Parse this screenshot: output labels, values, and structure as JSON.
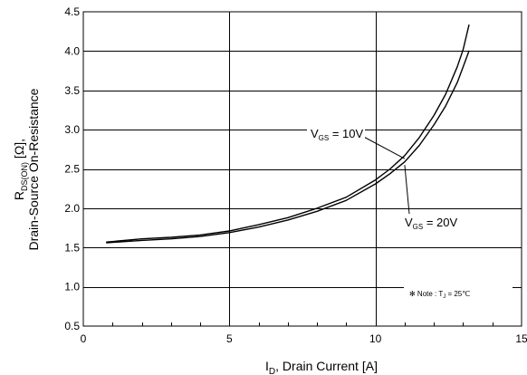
{
  "chart_data": {
    "type": "line",
    "title": "",
    "xlabel": {
      "main": "I",
      "sub": "D",
      "rest": ", Drain Current [A]"
    },
    "ylabel": {
      "line1_main": "R",
      "line1_sub": "DS(ON)",
      "line1_rest": " [Ω],",
      "line2": "Drain-Source On-Resistance"
    },
    "xlim": [
      0,
      15
    ],
    "ylim": [
      0.5,
      4.5
    ],
    "x_ticks": [
      "0",
      "5",
      "10",
      "15"
    ],
    "y_ticks": [
      "0.5",
      "1.0",
      "1.5",
      "2.0",
      "2.5",
      "3.0",
      "3.5",
      "4.0",
      "4.5"
    ],
    "grid": true,
    "series": [
      {
        "name": "VGS = 10V",
        "label": {
          "main": "V",
          "sub": "GS",
          "rest": " = 10V"
        },
        "x": [
          0.8,
          2,
          3,
          4,
          5,
          6,
          7,
          8,
          9,
          10,
          10.5,
          11,
          11.5,
          12,
          12.4,
          12.8,
          13.0,
          13.2
        ],
        "y": [
          1.57,
          1.61,
          1.63,
          1.66,
          1.71,
          1.79,
          1.88,
          2.0,
          2.14,
          2.36,
          2.5,
          2.67,
          2.9,
          3.18,
          3.45,
          3.8,
          4.02,
          4.33
        ]
      },
      {
        "name": "VGS = 20V",
        "label": {
          "main": "V",
          "sub": "GS",
          "rest": " = 20V"
        },
        "x": [
          0.8,
          2,
          3,
          4,
          5,
          6,
          7,
          8,
          9,
          10,
          10.5,
          11,
          11.5,
          12,
          12.4,
          12.8,
          13.0,
          13.2
        ],
        "y": [
          1.56,
          1.59,
          1.61,
          1.64,
          1.69,
          1.76,
          1.85,
          1.96,
          2.1,
          2.31,
          2.44,
          2.59,
          2.8,
          3.06,
          3.3,
          3.6,
          3.8,
          4.0
        ]
      }
    ],
    "note": {
      "prefix": "✻ Note : T",
      "sub": "J",
      "rest": " = 25℃"
    }
  }
}
